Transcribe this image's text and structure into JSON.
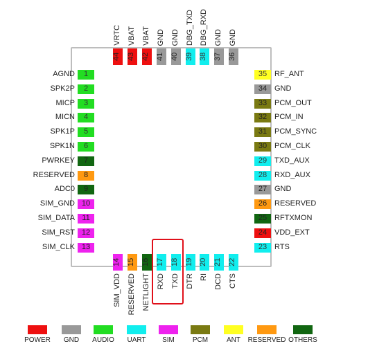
{
  "colors": {
    "power": "#ee1010",
    "gnd": "#999999",
    "audio": "#22dd22",
    "uart": "#11eeee",
    "sim": "#ee22ee",
    "pcm": "#7a7a12",
    "ant": "#ffff22",
    "reserved": "#ff9911",
    "others": "#116611"
  },
  "pins_left": [
    {
      "num": "1",
      "label": "AGND",
      "type": "audio"
    },
    {
      "num": "2",
      "label": "SPK2P",
      "type": "audio"
    },
    {
      "num": "3",
      "label": "MICP",
      "type": "audio"
    },
    {
      "num": "4",
      "label": "MICN",
      "type": "audio"
    },
    {
      "num": "5",
      "label": "SPK1P",
      "type": "audio"
    },
    {
      "num": "6",
      "label": "SPK1N",
      "type": "audio"
    },
    {
      "num": "7",
      "label": "PWRKEY",
      "type": "others"
    },
    {
      "num": "8",
      "label": "RESERVED",
      "type": "reserved"
    },
    {
      "num": "9",
      "label": "ADC0",
      "type": "others"
    },
    {
      "num": "10",
      "label": "SIM_GND",
      "type": "sim"
    },
    {
      "num": "11",
      "label": "SIM_DATA",
      "type": "sim"
    },
    {
      "num": "12",
      "label": "SIM_RST",
      "type": "sim"
    },
    {
      "num": "13",
      "label": "SIM_CLK",
      "type": "sim"
    }
  ],
  "pins_right": [
    {
      "num": "35",
      "label": "RF_ANT",
      "type": "ant"
    },
    {
      "num": "34",
      "label": "GND",
      "type": "gnd"
    },
    {
      "num": "33",
      "label": "PCM_OUT",
      "type": "pcm"
    },
    {
      "num": "32",
      "label": "PCM_IN",
      "type": "pcm"
    },
    {
      "num": "31",
      "label": "PCM_SYNC",
      "type": "pcm"
    },
    {
      "num": "30",
      "label": "PCM_CLK",
      "type": "pcm"
    },
    {
      "num": "29",
      "label": "TXD_AUX",
      "type": "uart"
    },
    {
      "num": "28",
      "label": "RXD_AUX",
      "type": "uart"
    },
    {
      "num": "27",
      "label": "GND",
      "type": "gnd"
    },
    {
      "num": "26",
      "label": "RESERVED",
      "type": "reserved"
    },
    {
      "num": "25",
      "label": "RFTXMON",
      "type": "others"
    },
    {
      "num": "24",
      "label": "VDD_EXT",
      "type": "power"
    },
    {
      "num": "23",
      "label": "RTS",
      "type": "uart"
    }
  ],
  "pins_top": [
    {
      "num": "44",
      "label": "VRTC",
      "type": "power"
    },
    {
      "num": "43",
      "label": "VBAT",
      "type": "power"
    },
    {
      "num": "42",
      "label": "VBAT",
      "type": "power"
    },
    {
      "num": "41",
      "label": "GND",
      "type": "gnd"
    },
    {
      "num": "40",
      "label": "GND",
      "type": "gnd"
    },
    {
      "num": "39",
      "label": "DBG_TXD",
      "type": "uart"
    },
    {
      "num": "38",
      "label": "DBG_RXD",
      "type": "uart"
    },
    {
      "num": "37",
      "label": "GND",
      "type": "gnd"
    },
    {
      "num": "36",
      "label": "GND",
      "type": "gnd"
    }
  ],
  "pins_bottom": [
    {
      "num": "14",
      "label": "SIM_VDD",
      "type": "sim"
    },
    {
      "num": "15",
      "label": "RESERVED",
      "type": "reserved"
    },
    {
      "num": "16",
      "label": "NETLIGHT",
      "type": "others"
    },
    {
      "num": "17",
      "label": "RXD",
      "type": "uart"
    },
    {
      "num": "18",
      "label": "TXD",
      "type": "uart"
    },
    {
      "num": "19",
      "label": "DTR",
      "type": "uart"
    },
    {
      "num": "20",
      "label": "RI",
      "type": "uart"
    },
    {
      "num": "21",
      "label": "DCD",
      "type": "uart"
    },
    {
      "num": "22",
      "label": "CTS",
      "type": "uart"
    }
  ],
  "legend": [
    {
      "label": "POWER",
      "type": "power"
    },
    {
      "label": "GND",
      "type": "gnd"
    },
    {
      "label": "AUDIO",
      "type": "audio"
    },
    {
      "label": "UART",
      "type": "uart"
    },
    {
      "label": "SIM",
      "type": "sim"
    },
    {
      "label": "PCM",
      "type": "pcm"
    },
    {
      "label": "ANT",
      "type": "ant"
    },
    {
      "label": "RESERVED",
      "type": "reserved"
    },
    {
      "label": "OTHERS",
      "type": "others"
    }
  ]
}
